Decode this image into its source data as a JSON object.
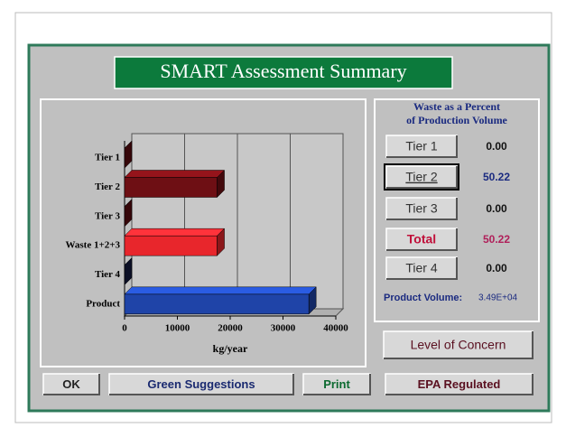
{
  "window": {
    "title": "SMART Assessment Summary"
  },
  "chart_data": {
    "type": "bar",
    "orientation": "horizontal",
    "categories": [
      "Tier 1",
      "Tier 2",
      "Tier 3",
      "Waste 1+2+3",
      "Tier 4",
      "Product"
    ],
    "values": [
      0,
      17527,
      0,
      17527,
      0,
      34900
    ],
    "colors": [
      "#5a0c10",
      "#6e0f14",
      "#5a0c10",
      "#e8262c",
      "#141a40",
      "#1f44a8"
    ],
    "xlim": [
      0,
      40000
    ],
    "xticks": [
      0,
      10000,
      20000,
      30000,
      40000
    ],
    "x_label": "kg/year",
    "grid": true
  },
  "summary": {
    "heading": [
      "Waste as a Percent",
      "of Production Volume"
    ],
    "rows": [
      {
        "button": "Tier 1",
        "value": "0.00"
      },
      {
        "button": "Tier 2",
        "value": "50.22"
      },
      {
        "button": "Tier 3",
        "value": "0.00"
      },
      {
        "button": "Total",
        "value": "50.22"
      },
      {
        "button": "Tier 4",
        "value": "0.00"
      }
    ],
    "product_volume_label": "Product Volume:",
    "product_volume": "3.49E+04"
  },
  "buttons": {
    "level": "Level of Concern",
    "ok": "OK",
    "green": "Green Suggestions",
    "print": "Print",
    "epa": "EPA Regulated"
  }
}
